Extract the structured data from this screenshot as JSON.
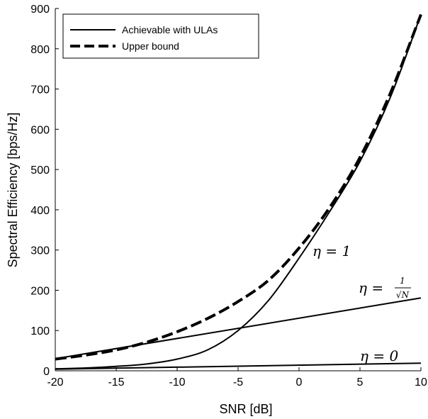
{
  "chart_data": {
    "type": "line",
    "xlabel": "SNR [dB]",
    "ylabel": "Spectral Efficiency [bps/Hz]",
    "xlim": [
      -20,
      10
    ],
    "ylim": [
      0,
      900
    ],
    "xticks": [
      "-20",
      "-15",
      "-10",
      "-5",
      "0",
      "5",
      "10"
    ],
    "yticks": [
      "0",
      "100",
      "200",
      "300",
      "400",
      "500",
      "600",
      "700",
      "800",
      "900"
    ],
    "grid": false,
    "legend_position": "top-left",
    "legend": [
      {
        "label": "Achievable with ULAs",
        "style": "solid"
      },
      {
        "label": "Upper bound",
        "style": "dashed"
      }
    ],
    "series": [
      {
        "name": "Upper bound",
        "style": "dashed",
        "x": [
          -20,
          -17.5,
          -15,
          -12.5,
          -10,
          -7.5,
          -5,
          -2.5,
          0,
          2.5,
          5,
          7.5,
          10
        ],
        "y": [
          29,
          39,
          52,
          71,
          97,
          130,
          172,
          225,
          305,
          405,
          530,
          690,
          885
        ]
      },
      {
        "name": "Achievable with ULAs",
        "annotation": "η = 1",
        "style": "solid",
        "x": [
          -20,
          -17.5,
          -15,
          -12.5,
          -10,
          -7.5,
          -5,
          -2.5,
          0,
          2.5,
          5,
          7.5,
          10
        ],
        "y": [
          5,
          7,
          11,
          17,
          29,
          52,
          100,
          175,
          280,
          395,
          520,
          680,
          885
        ]
      },
      {
        "name": "Achievable with ULAs",
        "annotation": "η = 1/√N",
        "style": "solid",
        "x": [
          -20,
          10
        ],
        "y": [
          30,
          181
        ]
      },
      {
        "name": "Achievable with ULAs",
        "annotation": "η = 0",
        "style": "solid",
        "x": [
          -20,
          10
        ],
        "y": [
          4,
          19
        ]
      }
    ],
    "annotations": {
      "eta1": {
        "prefix": "η = ",
        "value": "1"
      },
      "eta_sqrt": {
        "prefix": "η = ",
        "num": "1",
        "den": "√N"
      },
      "eta0": {
        "prefix": "η = ",
        "value": "0"
      }
    }
  }
}
